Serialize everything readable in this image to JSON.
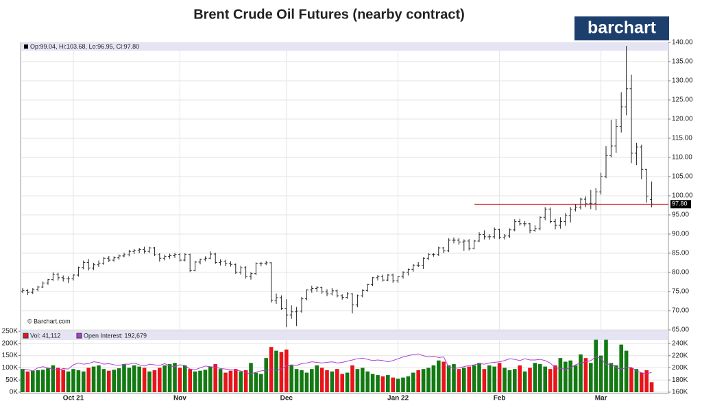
{
  "title": "Brent Crude Oil Futures (nearby contract)",
  "logo": "barchart",
  "watermark": "© Barchart.com",
  "chart_data": {
    "type": "ohlc",
    "categories": [
      null,
      null,
      null,
      null,
      null,
      null,
      null,
      null,
      null,
      null,
      "Oct 21",
      null,
      null,
      null,
      null,
      null,
      null,
      null,
      null,
      null,
      null,
      null,
      null,
      null,
      null,
      null,
      null,
      null,
      null,
      null,
      null,
      "Nov",
      null,
      null,
      null,
      null,
      null,
      null,
      null,
      null,
      null,
      null,
      null,
      null,
      null,
      null,
      null,
      null,
      null,
      null,
      null,
      null,
      "Dec",
      null,
      null,
      null,
      null,
      null,
      null,
      null,
      null,
      null,
      null,
      null,
      null,
      null,
      null,
      null,
      null,
      null,
      null,
      null,
      null,
      null,
      "Jan 22",
      null,
      null,
      null,
      null,
      null,
      null,
      null,
      null,
      null,
      null,
      null,
      null,
      null,
      null,
      null,
      null,
      null,
      null,
      null,
      "Feb",
      null,
      null,
      null,
      null,
      null,
      null,
      null,
      null,
      null,
      null,
      null,
      null,
      null,
      null,
      null,
      null,
      null,
      null,
      null,
      "Mar",
      null,
      null,
      null,
      null,
      null,
      null,
      null,
      null,
      null,
      null
    ],
    "ohlc": [
      [
        75.0,
        75.9,
        74.6,
        75.3
      ],
      [
        75.3,
        75.6,
        74.1,
        74.8
      ],
      [
        74.8,
        75.9,
        74.3,
        75.6
      ],
      [
        75.6,
        76.5,
        75.1,
        76.2
      ],
      [
        76.2,
        77.6,
        75.9,
        77.2
      ],
      [
        77.2,
        78.3,
        76.8,
        78.1
      ],
      [
        78.1,
        80.0,
        77.8,
        79.5
      ],
      [
        79.5,
        79.9,
        77.9,
        78.6
      ],
      [
        78.6,
        79.2,
        77.6,
        78.3
      ],
      [
        78.3,
        79.0,
        77.2,
        78.3
      ],
      [
        78.3,
        79.5,
        77.9,
        79.3
      ],
      [
        79.3,
        81.5,
        78.9,
        81.3
      ],
      [
        81.3,
        83.1,
        80.8,
        82.6
      ],
      [
        82.6,
        83.5,
        80.5,
        81.1
      ],
      [
        81.1,
        82.5,
        80.6,
        82.0
      ],
      [
        82.0,
        83.1,
        81.4,
        82.4
      ],
      [
        82.4,
        84.0,
        82.0,
        83.7
      ],
      [
        83.7,
        84.3,
        82.7,
        83.2
      ],
      [
        83.2,
        84.2,
        82.8,
        83.8
      ],
      [
        83.8,
        84.7,
        83.3,
        84.3
      ],
      [
        84.3,
        85.1,
        83.9,
        84.6
      ],
      [
        84.6,
        85.9,
        84.2,
        85.5
      ],
      [
        85.5,
        86.1,
        84.8,
        85.8
      ],
      [
        85.8,
        86.4,
        85.0,
        86.0
      ],
      [
        86.0,
        86.7,
        84.9,
        85.5
      ],
      [
        85.5,
        86.7,
        85.1,
        86.4
      ],
      [
        86.4,
        86.6,
        84.3,
        84.6
      ],
      [
        84.6,
        85.0,
        82.8,
        83.7
      ],
      [
        83.7,
        84.6,
        83.1,
        84.2
      ],
      [
        84.2,
        84.9,
        83.6,
        84.4
      ],
      [
        84.4,
        85.1,
        83.8,
        84.7
      ],
      [
        84.7,
        85.0,
        82.8,
        83.2
      ],
      [
        83.2,
        85.0,
        82.9,
        84.7
      ],
      [
        84.7,
        84.9,
        80.1,
        80.5
      ],
      [
        80.5,
        83.0,
        80.3,
        82.7
      ],
      [
        82.7,
        83.6,
        82.1,
        83.4
      ],
      [
        83.4,
        84.2,
        82.9,
        83.7
      ],
      [
        83.7,
        85.5,
        83.4,
        84.8
      ],
      [
        84.8,
        85.1,
        82.2,
        82.6
      ],
      [
        82.6,
        83.4,
        81.8,
        82.9
      ],
      [
        82.9,
        83.3,
        81.6,
        82.3
      ],
      [
        82.3,
        82.9,
        81.5,
        82.1
      ],
      [
        82.1,
        82.3,
        79.6,
        80.0
      ],
      [
        80.0,
        81.7,
        79.4,
        81.2
      ],
      [
        81.2,
        81.6,
        78.4,
        78.9
      ],
      [
        78.9,
        80.1,
        78.1,
        79.7
      ],
      [
        79.7,
        82.6,
        79.3,
        82.3
      ],
      [
        82.3,
        82.7,
        81.6,
        82.3
      ],
      [
        82.3,
        83.0,
        81.9,
        82.5
      ],
      [
        82.5,
        82.7,
        72.1,
        72.7
      ],
      [
        72.7,
        74.5,
        71.8,
        73.4
      ],
      [
        73.4,
        74.0,
        70.2,
        70.6
      ],
      [
        70.6,
        73.0,
        65.7,
        68.9
      ],
      [
        68.9,
        71.4,
        67.9,
        69.7
      ],
      [
        69.7,
        71.0,
        66.0,
        69.9
      ],
      [
        69.9,
        73.6,
        69.5,
        73.1
      ],
      [
        73.1,
        75.6,
        72.7,
        75.4
      ],
      [
        75.4,
        76.5,
        74.7,
        75.8
      ],
      [
        75.8,
        76.4,
        74.9,
        76.0
      ],
      [
        76.0,
        76.3,
        74.4,
        74.9
      ],
      [
        74.9,
        75.6,
        73.8,
        74.4
      ],
      [
        74.4,
        75.9,
        74.0,
        75.2
      ],
      [
        75.2,
        75.5,
        73.5,
        73.9
      ],
      [
        73.9,
        74.3,
        72.9,
        73.5
      ],
      [
        73.5,
        74.8,
        73.1,
        74.4
      ],
      [
        74.4,
        74.6,
        69.3,
        71.5
      ],
      [
        71.5,
        74.2,
        70.9,
        73.9
      ],
      [
        73.9,
        75.6,
        73.5,
        75.3
      ],
      [
        75.3,
        77.0,
        75.0,
        76.9
      ],
      [
        76.9,
        78.8,
        76.4,
        78.6
      ],
      [
        78.6,
        79.3,
        77.9,
        78.9
      ],
      [
        78.9,
        79.4,
        77.6,
        78.0
      ],
      [
        78.0,
        79.6,
        77.7,
        79.3
      ],
      [
        79.3,
        79.7,
        77.3,
        77.8
      ],
      [
        77.8,
        79.1,
        77.3,
        78.9
      ],
      [
        78.9,
        80.3,
        78.4,
        80.0
      ],
      [
        80.0,
        81.0,
        79.2,
        80.8
      ],
      [
        80.8,
        82.2,
        80.2,
        81.9
      ],
      [
        81.9,
        82.7,
        81.4,
        81.8
      ],
      [
        81.8,
        83.9,
        80.9,
        83.7
      ],
      [
        83.7,
        85.1,
        83.2,
        84.7
      ],
      [
        84.7,
        85.0,
        84.1,
        84.7
      ],
      [
        84.7,
        86.7,
        84.3,
        86.4
      ],
      [
        86.4,
        86.6,
        85.0,
        85.6
      ],
      [
        85.6,
        88.9,
        85.3,
        88.4
      ],
      [
        88.4,
        89.1,
        87.6,
        88.4
      ],
      [
        88.4,
        89.0,
        87.2,
        87.9
      ],
      [
        87.9,
        88.6,
        85.6,
        88.2
      ],
      [
        88.2,
        88.7,
        85.7,
        86.3
      ],
      [
        86.3,
        88.5,
        86.0,
        88.2
      ],
      [
        88.2,
        90.5,
        87.9,
        89.9
      ],
      [
        89.9,
        91.0,
        88.6,
        89.3
      ],
      [
        89.3,
        90.0,
        88.5,
        89.3
      ],
      [
        89.3,
        91.7,
        88.8,
        91.2
      ],
      [
        91.2,
        91.4,
        88.7,
        89.2
      ],
      [
        89.2,
        90.0,
        88.6,
        89.5
      ],
      [
        89.5,
        91.5,
        89.0,
        91.1
      ],
      [
        91.1,
        93.9,
        90.7,
        93.3
      ],
      [
        93.3,
        94.0,
        92.2,
        92.7
      ],
      [
        92.7,
        93.4,
        92.0,
        92.7
      ],
      [
        92.7,
        92.9,
        90.2,
        91.0
      ],
      [
        91.0,
        92.3,
        90.6,
        91.4
      ],
      [
        91.4,
        94.6,
        91.0,
        94.4
      ],
      [
        94.4,
        97.0,
        93.6,
        96.5
      ],
      [
        96.5,
        96.9,
        92.8,
        93.3
      ],
      [
        93.3,
        94.0,
        91.2,
        92.3
      ],
      [
        92.3,
        94.4,
        91.4,
        93.3
      ],
      [
        93.3,
        95.5,
        92.2,
        94.8
      ],
      [
        94.8,
        97.0,
        93.0,
        96.5
      ],
      [
        96.5,
        97.7,
        95.9,
        97.0
      ],
      [
        97.0,
        99.5,
        96.4,
        99.1
      ],
      [
        99.1,
        99.8,
        97.0,
        97.9
      ],
      [
        97.9,
        101.5,
        96.5,
        97.9
      ],
      [
        97.9,
        102.0,
        96.2,
        101.0
      ],
      [
        101.0,
        106.0,
        100.3,
        105.0
      ],
      [
        105.0,
        113.0,
        104.6,
        110.5
      ],
      [
        110.5,
        119.8,
        110.0,
        113.0
      ],
      [
        113.0,
        120.0,
        111.2,
        118.1
      ],
      [
        118.1,
        127.0,
        116.5,
        123.2
      ],
      [
        123.2,
        139.1,
        121.0,
        127.9
      ],
      [
        127.9,
        131.6,
        108.5,
        111.1
      ],
      [
        111.1,
        113.8,
        108.0,
        112.7
      ],
      [
        112.7,
        113.3,
        104.3,
        106.9
      ],
      [
        106.9,
        107.0,
        98.2,
        99.9
      ],
      [
        99.04,
        103.68,
        96.95,
        97.8
      ]
    ],
    "info_label": "Op:99.04, Hi:103.68, Lo:96.95, Cl:97.80",
    "last_price": {
      "value": 97.8,
      "label": "97.80"
    },
    "ylim": [
      65,
      140
    ],
    "yticks": [
      {
        "value": 65,
        "label": "65.00"
      },
      {
        "value": 70,
        "label": "70.00"
      },
      {
        "value": 75,
        "label": "75.00"
      },
      {
        "value": 80,
        "label": "80.00"
      },
      {
        "value": 85,
        "label": "85.00"
      },
      {
        "value": 90,
        "label": "90.00"
      },
      {
        "value": 95,
        "label": "95.00"
      },
      {
        "value": 100,
        "label": "100.00"
      },
      {
        "value": 105,
        "label": "105.00"
      },
      {
        "value": 110,
        "label": "110.00"
      },
      {
        "value": 115,
        "label": "115.00"
      },
      {
        "value": 120,
        "label": "120.00"
      },
      {
        "value": 125,
        "label": "125.00"
      },
      {
        "value": 130,
        "label": "130.00"
      },
      {
        "value": 135,
        "label": "135.00"
      },
      {
        "value": 140,
        "label": "140.00"
      }
    ],
    "bar_color": "#222222",
    "last_color": "#cc0000",
    "up_color": "#137a13",
    "down_color": "#e8141b",
    "grid": true,
    "volume": {
      "name": "Vol: 41,112",
      "color": "#e8141b",
      "values": [
        95000,
        85000,
        88000,
        90000,
        92000,
        98000,
        110000,
        100000,
        92000,
        85000,
        95000,
        90000,
        85000,
        100000,
        105000,
        110000,
        95000,
        88000,
        92000,
        98000,
        115000,
        100000,
        110000,
        105000,
        100000,
        85000,
        90000,
        100000,
        110000,
        115000,
        120000,
        100000,
        110000,
        95000,
        85000,
        88000,
        92000,
        105000,
        115000,
        95000,
        80000,
        88000,
        95000,
        85000,
        90000,
        120000,
        80000,
        75000,
        140000,
        185000,
        170000,
        165000,
        175000,
        110000,
        95000,
        90000,
        80000,
        95000,
        110000,
        100000,
        90000,
        85000,
        95000,
        75000,
        80000,
        110000,
        95000,
        100000,
        85000,
        75000,
        70000,
        65000,
        70000,
        60000,
        55000,
        60000,
        65000,
        80000,
        90000,
        95000,
        100000,
        110000,
        130000,
        125000,
        110000,
        115000,
        95000,
        100000,
        105000,
        110000,
        120000,
        95000,
        110000,
        105000,
        120000,
        100000,
        90000,
        95000,
        110000,
        85000,
        100000,
        120000,
        115000,
        105000,
        95000,
        110000,
        140000,
        125000,
        130000,
        110000,
        155000,
        140000,
        120000,
        215000,
        150000,
        215000,
        120000,
        110000,
        195000,
        170000,
        100000,
        95000,
        80000,
        90000,
        41112
      ],
      "ylim": [
        0,
        250000
      ],
      "yticks": [
        {
          "value": 0,
          "label": "0K"
        },
        {
          "value": 50000,
          "label": "50K"
        },
        {
          "value": 100000,
          "label": "100K"
        },
        {
          "value": 150000,
          "label": "150K"
        },
        {
          "value": 200000,
          "label": "200K"
        },
        {
          "value": 250000,
          "label": "250K"
        }
      ]
    },
    "open_interest": {
      "name": "Open Interest: 192,679",
      "color": "#b23ad6",
      "values": [
        198000,
        197000,
        195000,
        200000,
        202000,
        200000,
        198000,
        196000,
        199000,
        198000,
        205000,
        208000,
        206000,
        207000,
        210000,
        209000,
        206000,
        207000,
        205000,
        204000,
        206000,
        206000,
        208000,
        205000,
        203000,
        206000,
        205000,
        204000,
        207000,
        203000,
        202000,
        205000,
        204000,
        198000,
        197000,
        200000,
        203000,
        202000,
        201000,
        199000,
        198000,
        197000,
        196000,
        195000,
        192000,
        190000,
        193000,
        195000,
        196000,
        197000,
        196000,
        198000,
        203000,
        205000,
        204000,
        207000,
        208000,
        210000,
        209000,
        208000,
        209000,
        210000,
        208000,
        209000,
        211000,
        213000,
        215000,
        216000,
        214000,
        212000,
        213000,
        212000,
        210000,
        212000,
        215000,
        218000,
        220000,
        222000,
        223000,
        220000,
        218000,
        219000,
        217000,
        218000,
        201000,
        199000,
        200000,
        202000,
        204000,
        205000,
        207000,
        206000,
        208000,
        209000,
        210000,
        212000,
        215000,
        214000,
        212000,
        215000,
        213000,
        213000,
        214000,
        212000,
        208000,
        200000,
        199000,
        198000,
        200000,
        205000,
        208000,
        210000,
        212000,
        218000,
        216000,
        205000,
        207000,
        200000,
        198000,
        200000,
        201000,
        195000,
        192000,
        190000,
        192679
      ],
      "ylim": [
        160000,
        240000
      ],
      "yticks": [
        {
          "value": 160000,
          "label": "160K"
        },
        {
          "value": 180000,
          "label": "180K"
        },
        {
          "value": 200000,
          "label": "200K"
        },
        {
          "value": 220000,
          "label": "220K"
        },
        {
          "value": 240000,
          "label": "240K"
        }
      ]
    }
  }
}
